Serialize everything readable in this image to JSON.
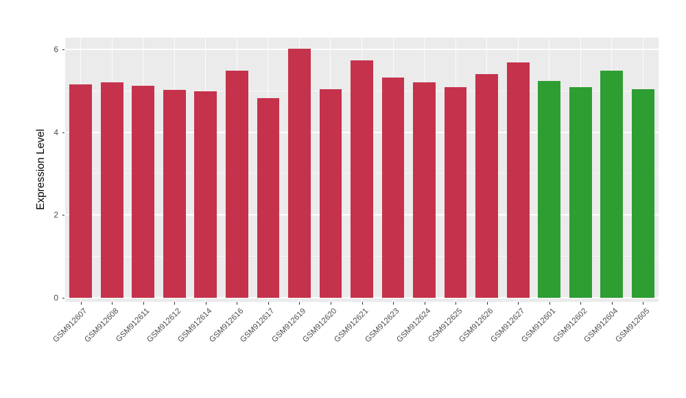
{
  "chart_data": {
    "type": "bar",
    "title": "",
    "xlabel": "",
    "ylabel": "Expression Level",
    "categories": [
      "GSM912607",
      "GSM912608",
      "GSM912611",
      "GSM912612",
      "GSM912614",
      "GSM912616",
      "GSM912617",
      "GSM912619",
      "GSM912620",
      "GSM912621",
      "GSM912623",
      "GSM912624",
      "GSM912625",
      "GSM912626",
      "GSM912627",
      "GSM912601",
      "GSM912602",
      "GSM912604",
      "GSM912605"
    ],
    "values": [
      5.15,
      5.2,
      5.12,
      5.02,
      4.98,
      5.48,
      4.83,
      6.02,
      5.03,
      5.73,
      5.32,
      5.2,
      5.08,
      5.4,
      5.68,
      5.23,
      5.08,
      5.48,
      5.03
    ],
    "bar_colors": [
      "#C5324B",
      "#C5324B",
      "#C5324B",
      "#C5324B",
      "#C5324B",
      "#C5324B",
      "#C5324B",
      "#C5324B",
      "#C5324B",
      "#C5324B",
      "#C5324B",
      "#C5324B",
      "#C5324B",
      "#C5324B",
      "#C5324B",
      "#2E9D32",
      "#2E9D32",
      "#2E9D32",
      "#2E9D32"
    ],
    "ylim": [
      0,
      6.28
    ],
    "yticks": [
      0,
      2,
      4,
      6
    ],
    "yticks_minor": [
      1,
      3,
      5
    ],
    "grid": true,
    "legend": "none",
    "panel_bg": "#EBEBEB",
    "figure_bg": "#FFFFFF"
  }
}
